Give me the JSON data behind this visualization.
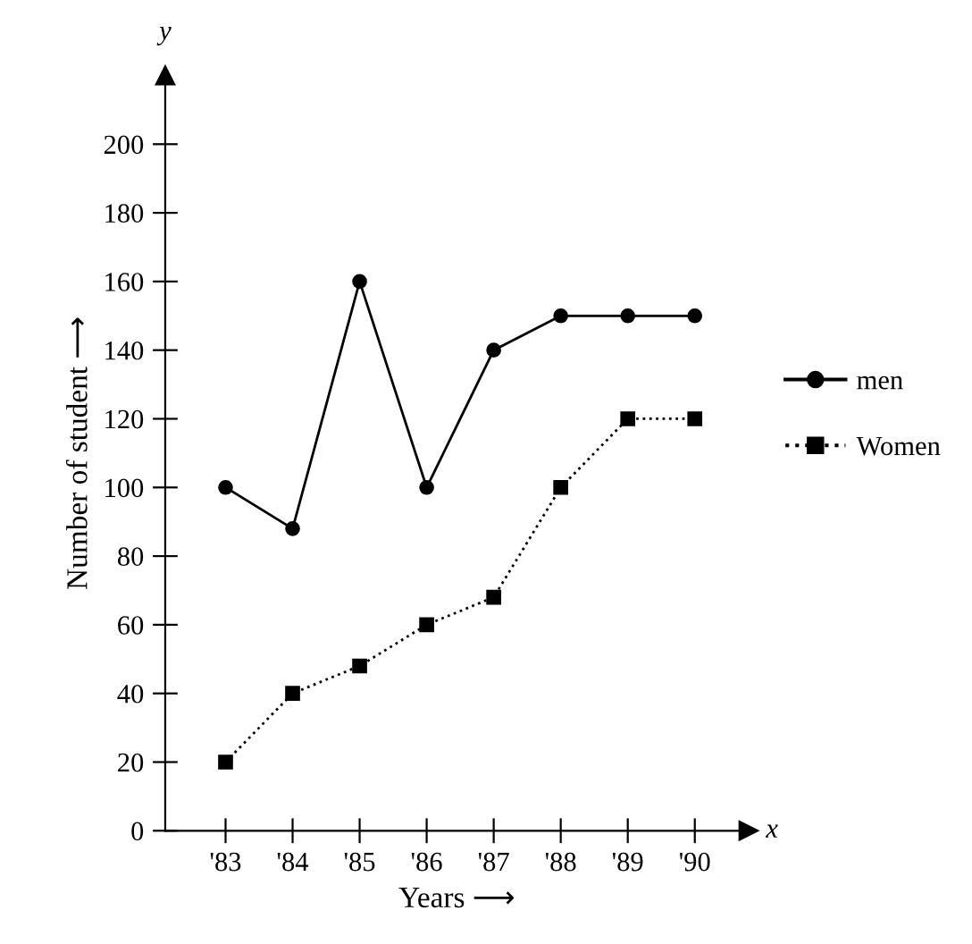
{
  "chart_data": {
    "type": "line",
    "xlabel": "Years ⟶",
    "ylabel": "Number of student ⟶",
    "annotations": [
      "y",
      "x"
    ],
    "categories": [
      "'83",
      "'84",
      "'85",
      "'86",
      "'87",
      "'88",
      "'89",
      "'90"
    ],
    "series": [
      {
        "name": "men",
        "color": "#000000",
        "values": [
          100,
          88,
          160,
          100,
          140,
          150,
          150,
          150
        ],
        "marker": "circle",
        "line_style": "solid"
      },
      {
        "name": "Women",
        "color": "#000000",
        "values": [
          20,
          40,
          48,
          60,
          68,
          100,
          120,
          120
        ],
        "marker": "square",
        "line_style": "dotted"
      }
    ],
    "ylim": [
      0,
      220
    ],
    "yticks": [
      0,
      20,
      40,
      60,
      80,
      100,
      120,
      140,
      160,
      180,
      200
    ],
    "grid": false,
    "legend": "right"
  }
}
